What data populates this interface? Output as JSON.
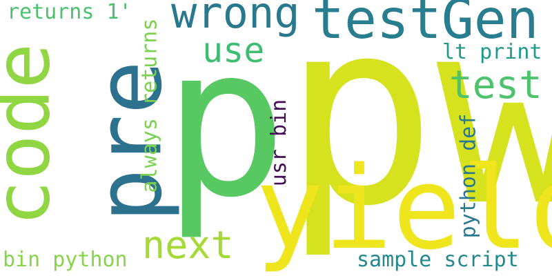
{
  "words": [
    {
      "text": "pw",
      "color": "#d6e21d"
    },
    {
      "text": "p",
      "color": "#58c863"
    },
    {
      "text": "yield",
      "color": "#efe51c"
    },
    {
      "text": "pre",
      "color": "#2c718e"
    },
    {
      "text": "code",
      "color": "#90d643"
    },
    {
      "text": "testGen",
      "color": "#287d8e"
    },
    {
      "text": "wrong",
      "color": "#29798e"
    },
    {
      "text": "next",
      "color": "#a5da35"
    },
    {
      "text": "test",
      "color": "#4dc36b"
    },
    {
      "text": "use",
      "color": "#3fbc73"
    },
    {
      "text": "always returns",
      "color": "#7ad151"
    },
    {
      "text": "usr bin",
      "color": "#440d55"
    },
    {
      "text": "python def",
      "color": "#2a788e"
    },
    {
      "text": "returns 1'",
      "color": "#4ac16d"
    },
    {
      "text": "lt print",
      "color": "#1f9a8a"
    },
    {
      "text": "bin python",
      "color": "#86d549"
    },
    {
      "text": "sample script",
      "color": "#23888e"
    }
  ]
}
